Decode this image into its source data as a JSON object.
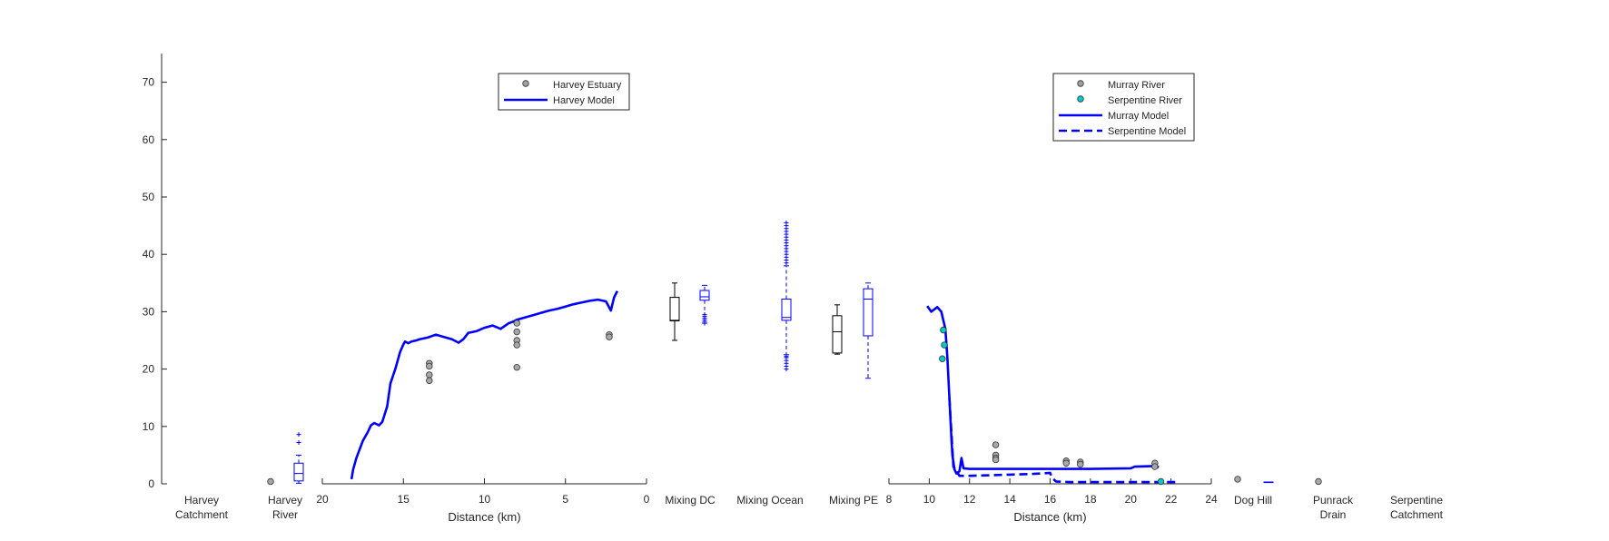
{
  "chart_data": {
    "type": "line",
    "y_axis": {
      "ylim": [
        0,
        75
      ],
      "ticks": [
        0,
        10,
        20,
        30,
        40,
        50,
        60,
        70
      ]
    },
    "site_labels": [
      {
        "lines": [
          "Harvey",
          "Catchment"
        ]
      },
      {
        "lines": [
          "Harvey",
          "River"
        ]
      },
      {
        "lines": [
          "Mixing DC"
        ]
      },
      {
        "lines": [
          "Mixing Ocean"
        ]
      },
      {
        "lines": [
          "Mixing PE"
        ]
      },
      {
        "lines": [
          "Dog Hill"
        ]
      },
      {
        "lines": [
          "Punrack",
          "Drain"
        ]
      },
      {
        "lines": [
          "Serpentine",
          "Catchment"
        ]
      }
    ],
    "harvey_panel": {
      "xlabel": "Distance (km)",
      "xlim": [
        20,
        0
      ],
      "xticks": [
        20,
        15,
        10,
        5,
        0
      ],
      "legend": {
        "position": "top",
        "entries": [
          {
            "label": "Harvey Estuary",
            "kind": "marker",
            "color": "#a0a0a0"
          },
          {
            "label": "Harvey Model",
            "kind": "line",
            "color": "#0000ff"
          }
        ]
      },
      "model_line": {
        "x": [
          18.2,
          18.1,
          17.9,
          17.7,
          17.5,
          17.2,
          17.0,
          16.8,
          16.5,
          16.3,
          16.0,
          15.8,
          15.5,
          15.2,
          15.0,
          14.9,
          14.7,
          14.5,
          14.2,
          14.0,
          13.5,
          13.0,
          12.5,
          12.0,
          11.6,
          11.3,
          11.0,
          10.5,
          10.0,
          9.5,
          9.0,
          8.5,
          8.2,
          8.0,
          7.5,
          7.0,
          6.5,
          6.0,
          5.5,
          5.0,
          4.5,
          4.0,
          3.5,
          3.0,
          2.5,
          2.2,
          2.0,
          1.8
        ],
        "y": [
          0.8,
          2.5,
          4.5,
          6.0,
          7.5,
          9.0,
          10.2,
          10.6,
          10.2,
          10.8,
          13.5,
          17.5,
          20.0,
          23.0,
          24.3,
          24.8,
          24.5,
          24.8,
          25.0,
          25.2,
          25.5,
          26.0,
          25.6,
          25.2,
          24.6,
          25.2,
          26.3,
          26.6,
          27.2,
          27.6,
          27.0,
          28.0,
          28.3,
          28.6,
          29.0,
          29.4,
          29.8,
          30.2,
          30.5,
          30.9,
          31.3,
          31.6,
          31.9,
          32.1,
          31.8,
          30.2,
          32.5,
          33.6
        ]
      },
      "observations": {
        "x": [
          13.4,
          13.4,
          13.4,
          13.4,
          8.0,
          8.0,
          8.0,
          8.0,
          8.0,
          2.3,
          2.3
        ],
        "y": [
          21.0,
          20.5,
          19.0,
          18.0,
          28.0,
          26.5,
          25.0,
          24.2,
          20.3,
          26.0,
          25.6
        ]
      }
    },
    "murray_panel": {
      "xlabel": "Distance (km)",
      "xlim": [
        8,
        24
      ],
      "xticks": [
        8,
        10,
        12,
        14,
        16,
        18,
        20,
        22,
        24
      ],
      "legend": {
        "position": "top",
        "entries": [
          {
            "label": "Murray River",
            "kind": "marker",
            "color": "#a0a0a0"
          },
          {
            "label": "Serpentine River",
            "kind": "marker",
            "color": "#00cccc"
          },
          {
            "label": "Murray Model",
            "kind": "line",
            "color": "#0000ff"
          },
          {
            "label": "Serpentine Model",
            "kind": "dashed",
            "color": "#0000ff"
          }
        ]
      },
      "murray_model": {
        "x": [
          9.9,
          10.1,
          10.4,
          10.6,
          10.8,
          10.9,
          11.0,
          11.1,
          11.15,
          11.25,
          11.35,
          11.5,
          11.6,
          11.7,
          12.0,
          14.0,
          16.0,
          18.0,
          20.0,
          20.2,
          21.2,
          21.4
        ],
        "y": [
          31.0,
          30.0,
          30.8,
          30.0,
          27.0,
          22.0,
          15.0,
          8.0,
          5.0,
          2.5,
          1.8,
          2.2,
          4.5,
          2.7,
          2.6,
          2.6,
          2.6,
          2.6,
          2.7,
          3.0,
          3.1,
          2.9
        ]
      },
      "serpentine_model": {
        "x": [
          11.0,
          11.2,
          11.5,
          12.0,
          13.0,
          14.0,
          15.0,
          15.5,
          16.0,
          16.1,
          16.3,
          17.0,
          18.0,
          20.0,
          21.5,
          22.3
        ],
        "y": [
          15.0,
          3.0,
          1.4,
          1.4,
          1.5,
          1.6,
          1.7,
          1.8,
          1.9,
          1.0,
          0.4,
          0.3,
          0.3,
          0.3,
          0.3,
          0.3
        ]
      },
      "murray_observations": {
        "x": [
          13.3,
          13.3,
          13.3,
          13.3,
          16.8,
          16.8,
          17.5,
          17.5,
          21.2,
          21.2
        ],
        "y": [
          6.8,
          5.0,
          4.5,
          4.2,
          4.0,
          3.6,
          3.8,
          3.4,
          3.6,
          3.0
        ]
      },
      "serpentine_observations": {
        "x": [
          10.7,
          10.75,
          10.65,
          21.5
        ],
        "y": [
          26.8,
          24.2,
          21.8,
          0.4
        ]
      }
    },
    "boxplots": [
      {
        "site": "Harvey River",
        "color": "#0000ff",
        "lower_whisker": 0.1,
        "q1": 0.5,
        "median": 1.8,
        "q3": 3.6,
        "upper_whisker": 5.0,
        "outliers": [
          8.6,
          7.2
        ]
      },
      {
        "site": "Mixing DC",
        "color": "#000000",
        "lower_whisker": 25.0,
        "q1": 28.4,
        "median": 28.5,
        "q3": 32.5,
        "upper_whisker": 35.0,
        "outliers": []
      },
      {
        "site": "Mixing DC",
        "color": "#0000ff",
        "lower_whisker": 28.0,
        "q1": 32.0,
        "median": 32.6,
        "q3": 33.7,
        "upper_whisker": 34.6,
        "outliers": [
          28.0,
          28.3,
          28.6,
          28.9,
          29.2,
          29.5
        ]
      },
      {
        "site": "Mixing Ocean",
        "color": "#0000ff",
        "lower_whisker": 22.5,
        "q1": 28.5,
        "median": 29.0,
        "q3": 32.2,
        "upper_whisker": 38.0,
        "outliers": [
          20.0,
          20.5,
          21.0,
          21.5,
          22.0,
          22.2,
          38.5,
          39.0,
          39.5,
          40.0,
          40.5,
          41.0,
          41.5,
          42.0,
          42.5,
          43.0,
          43.5,
          44.0,
          44.5,
          45.0,
          45.5
        ]
      },
      {
        "site": "Mixing PE",
        "color": "#000000",
        "lower_whisker": 22.6,
        "q1": 22.8,
        "median": 26.5,
        "q3": 29.3,
        "upper_whisker": 31.2,
        "outliers": []
      },
      {
        "site": "Mixing PE",
        "color": "#0000ff",
        "lower_whisker": 18.4,
        "q1": 25.8,
        "median": 32.2,
        "q3": 34.0,
        "upper_whisker": 35.0,
        "outliers": []
      },
      {
        "site": "Dog Hill",
        "color": "#0000ff",
        "lower_whisker": 0.3,
        "q1": 0.3,
        "median": 0.3,
        "q3": 0.3,
        "upper_whisker": 0.3,
        "outliers": []
      }
    ],
    "site_points": [
      {
        "site": "Harvey River",
        "value": 0.4
      },
      {
        "site": "Dog Hill",
        "value": 0.8
      },
      {
        "site": "Punrack Drain",
        "value": 0.4
      }
    ]
  }
}
